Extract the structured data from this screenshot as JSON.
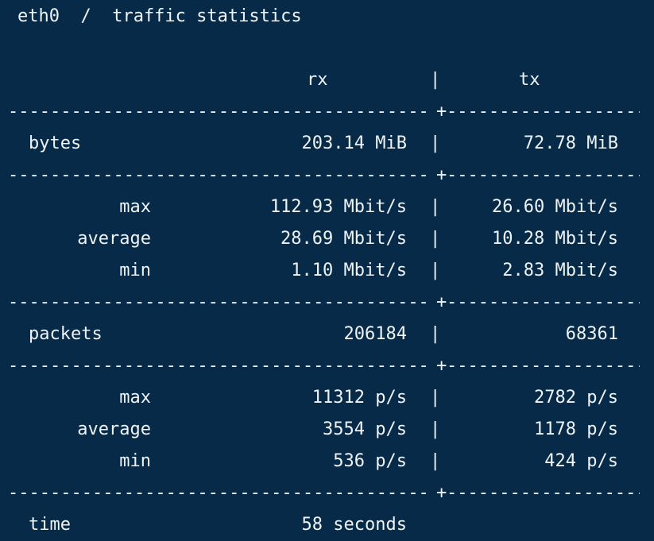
{
  "title": "eth0  /  traffic statistics",
  "columns": {
    "rx": "rx",
    "separator": "|",
    "tx": "tx"
  },
  "divider": {
    "line": "----------------------------------------------------------------------",
    "cross": "+"
  },
  "bytes": {
    "label": "bytes",
    "rx": "203.14 MiB",
    "tx": "72.78 MiB"
  },
  "bitrate": [
    {
      "label": "max",
      "rx": "112.93 Mbit/s",
      "tx": "26.60 Mbit/s"
    },
    {
      "label": "average",
      "rx": "28.69 Mbit/s",
      "tx": "10.28 Mbit/s"
    },
    {
      "label": "min",
      "rx": "1.10 Mbit/s",
      "tx": "2.83 Mbit/s"
    }
  ],
  "packets": {
    "label": "packets",
    "rx": "206184",
    "tx": "68361"
  },
  "packet_rate": [
    {
      "label": "max",
      "rx": "11312 p/s",
      "tx": "2782 p/s"
    },
    {
      "label": "average",
      "rx": "3554 p/s",
      "tx": "1178 p/s"
    },
    {
      "label": "min",
      "rx": "536 p/s",
      "tx": "424 p/s"
    }
  ],
  "time": {
    "label": "time",
    "value": "58 seconds"
  }
}
